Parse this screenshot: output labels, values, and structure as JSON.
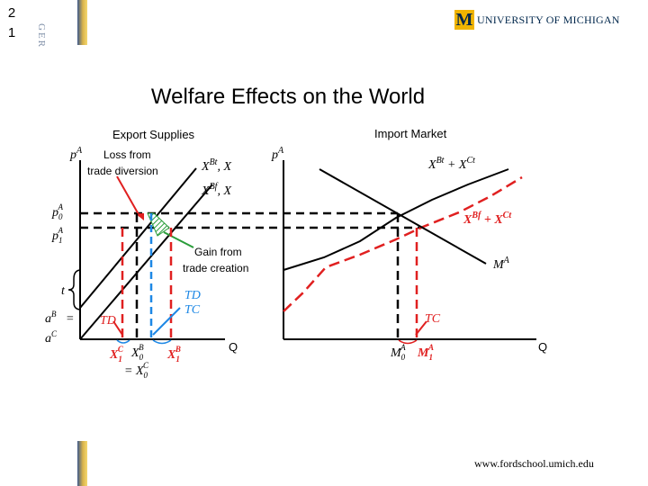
{
  "slide_number": [
    "2",
    "1"
  ],
  "side_label": "GER",
  "logo": {
    "mark": "M",
    "text": "UNIVERSITY OF MICHIGAN"
  },
  "title": "Welfare Effects on the World",
  "left_panel": {
    "heading": "Export Supplies",
    "loss_label": [
      "Loss from",
      "trade diversion"
    ],
    "gain_label": [
      "Gain from",
      "trade creation"
    ],
    "axis_x_label": "Q",
    "axis_y_label": "p",
    "axis_y_sup": "A",
    "curve_label_1": "X",
    "curve_label_1_sup": "Bt",
    "curve_label_1_tail": ", X",
    "curve_label_2": "X",
    "curve_label_2_sup": "Bf",
    "curve_label_2_tail": ", X",
    "price_p0": "p",
    "price_p0_sub": "0",
    "price_p0_sup": "A",
    "price_p1": "p",
    "price_p1_sub": "1",
    "price_p1_sup": "A",
    "tariff": "t",
    "intercept_a": "a",
    "intercept_a_sup": "B",
    "intercept_eq": "=",
    "intercept_c": "a",
    "intercept_c_sup": "C",
    "td_label": "TD",
    "td_blue": "TD",
    "tc_blue": "TC",
    "q_x1c": "X",
    "q_x1c_sub": "1",
    "q_x1c_sup": "C",
    "q_x0b": "X",
    "q_x0b_sub": "0",
    "q_x0b_sup": "B",
    "q_x1b": "X",
    "q_x1b_sub": "1",
    "q_x1b_sup": "B",
    "q_x0c_eq": "= X",
    "q_x0c_sub": "0",
    "q_x0c_sup": "C"
  },
  "right_panel": {
    "heading": "Import Market",
    "axis_x_label": "Q",
    "axis_y_label": "p",
    "axis_y_sup": "A",
    "supply_label": "X",
    "supply_sup1": "Bt",
    "supply_plus": " + X",
    "supply_sup2": "Ct",
    "supply_f_label": "X",
    "supply_f_sup1": "Bf",
    "supply_f_plus": " + X",
    "supply_f_sup2": "Ct",
    "demand_label": "M",
    "demand_sup": "A",
    "tc_label": "TC",
    "q_m0": "M",
    "q_m0_sub": "0",
    "q_m0_sup": "A",
    "q_m1": "M",
    "q_m1_sub": "1",
    "q_m1_sup": "A"
  },
  "colors": {
    "red": "#e02020",
    "blue": "#1e88e5",
    "green": "#2a9d3a"
  },
  "footer_url": "www.fordschool.umich.edu"
}
